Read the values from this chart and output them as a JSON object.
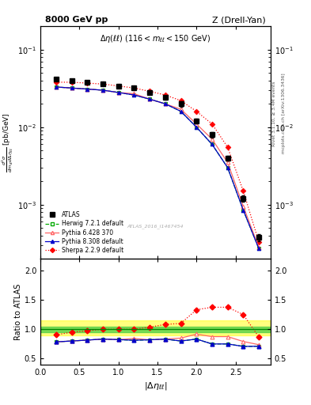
{
  "title_top": "8000 GeV pp",
  "title_right": "Z (Drell-Yan)",
  "subtitle": "Δη(ℓℓ) (116 < m_{ℓℓ} < 150 GeV)",
  "watermark": "ATLAS_2016_I1467454",
  "rivet_label": "Rivet 3.1.10, ≥ 3.4M events",
  "mcplots_label": "mcplots.cern.ch [arXiv:1306.3436]",
  "ylabel_ratio": "Ratio to ATLAS",
  "x_data": [
    0.2,
    0.4,
    0.6,
    0.8,
    1.0,
    1.2,
    1.4,
    1.6,
    1.8,
    2.0,
    2.2,
    2.4,
    2.6,
    2.8
  ],
  "atlas_y": [
    0.042,
    0.04,
    0.038,
    0.036,
    0.034,
    0.032,
    0.028,
    0.024,
    0.02,
    0.012,
    0.008,
    0.004,
    0.0012,
    0.00038
  ],
  "atlas_yerr": [
    0.0015,
    0.0015,
    0.0015,
    0.0015,
    0.0015,
    0.0015,
    0.0015,
    0.0015,
    0.0015,
    0.0008,
    0.0006,
    0.0003,
    0.00012,
    4e-05
  ],
  "herwig_y": [
    0.033,
    0.032,
    0.031,
    0.03,
    0.028,
    0.026,
    0.023,
    0.02,
    0.016,
    0.01,
    0.006,
    0.003,
    0.00085,
    0.00027
  ],
  "pythia6_y": [
    0.033,
    0.032,
    0.031,
    0.03,
    0.028,
    0.027,
    0.023,
    0.02,
    0.017,
    0.011,
    0.007,
    0.0035,
    0.00095,
    0.00028
  ],
  "pythia8_y": [
    0.033,
    0.032,
    0.031,
    0.03,
    0.028,
    0.026,
    0.023,
    0.02,
    0.016,
    0.01,
    0.006,
    0.003,
    0.00085,
    0.00027
  ],
  "sherpa_y": [
    0.038,
    0.038,
    0.037,
    0.036,
    0.034,
    0.032,
    0.029,
    0.026,
    0.022,
    0.016,
    0.011,
    0.0055,
    0.0015,
    0.00033
  ],
  "herwig_color": "#00aa00",
  "pythia6_color": "#ff6666",
  "pythia8_color": "#0000cc",
  "sherpa_color": "#ff0000",
  "atlas_color": "#000000",
  "ylim_main": [
    0.0002,
    0.2
  ],
  "ylim_ratio": [
    0.4,
    2.2
  ],
  "ratio_yticks": [
    0.5,
    1.0,
    1.5,
    2.0
  ],
  "herwig_ratio": [
    0.786,
    0.8,
    0.816,
    0.833,
    0.824,
    0.813,
    0.821,
    0.833,
    0.8,
    0.833,
    0.75,
    0.75,
    0.708,
    0.711
  ],
  "pythia6_ratio": [
    0.786,
    0.8,
    0.816,
    0.833,
    0.824,
    0.844,
    0.821,
    0.833,
    0.85,
    0.917,
    0.875,
    0.875,
    0.792,
    0.737
  ],
  "pythia8_ratio": [
    0.786,
    0.8,
    0.816,
    0.833,
    0.824,
    0.813,
    0.821,
    0.833,
    0.8,
    0.833,
    0.75,
    0.75,
    0.708,
    0.711
  ],
  "sherpa_ratio": [
    0.905,
    0.95,
    0.974,
    1.0,
    1.0,
    1.0,
    1.036,
    1.083,
    1.1,
    1.333,
    1.375,
    1.375,
    1.25,
    0.868
  ],
  "band_green_low": 0.95,
  "band_green_high": 1.05,
  "band_yellow_low": 0.9,
  "band_yellow_high": 1.15,
  "xlim": [
    0.0,
    2.95
  ]
}
